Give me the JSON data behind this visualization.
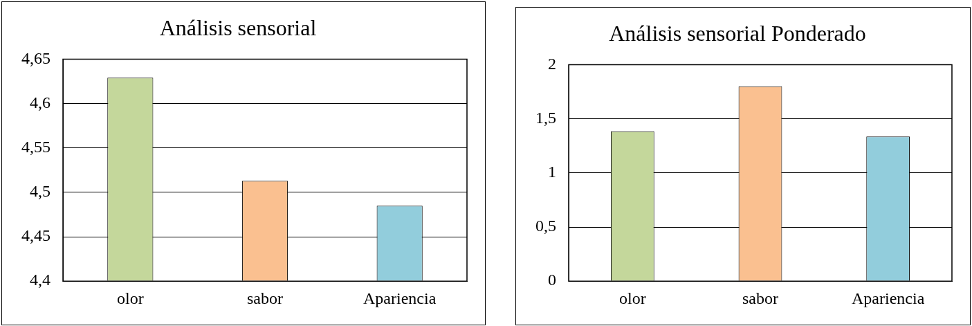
{
  "chart_data": [
    {
      "type": "bar",
      "title": "Análisis sensorial",
      "categories": [
        "olor",
        "sabor",
        "Apariencia"
      ],
      "values": [
        4.629,
        4.513,
        4.485
      ],
      "colors": [
        "#c4d79b",
        "#fac090",
        "#92cddc"
      ],
      "ylim": [
        4.4,
        4.65
      ],
      "yticks": [
        {
          "value": 4.4,
          "label": "4,4"
        },
        {
          "value": 4.45,
          "label": "4,45"
        },
        {
          "value": 4.5,
          "label": "4,5"
        },
        {
          "value": 4.55,
          "label": "4,55"
        },
        {
          "value": 4.6,
          "label": "4,6"
        },
        {
          "value": 4.65,
          "label": "4,65"
        }
      ],
      "grid": "y",
      "legend": false
    },
    {
      "type": "bar",
      "title": "Análisis sensorial Ponderado",
      "categories": [
        "olor",
        "sabor",
        "Apariencia"
      ],
      "values": [
        1.384,
        1.8,
        1.336
      ],
      "colors": [
        "#c4d79b",
        "#fac090",
        "#92cddc"
      ],
      "ylim": [
        0,
        2
      ],
      "yticks": [
        0,
        {
          "value": 0.5,
          "label": "0,5"
        },
        1,
        {
          "value": 1.5,
          "label": "1,5"
        },
        2
      ],
      "grid": "y",
      "legend": false
    }
  ]
}
